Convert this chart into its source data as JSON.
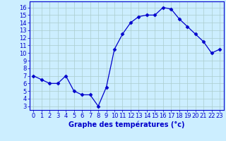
{
  "hours": [
    0,
    1,
    2,
    3,
    4,
    5,
    6,
    7,
    8,
    9,
    10,
    11,
    12,
    13,
    14,
    15,
    16,
    17,
    18,
    19,
    20,
    21,
    22,
    23
  ],
  "temps": [
    7,
    6.5,
    6,
    6,
    7,
    5,
    4.5,
    4.5,
    3,
    5.5,
    10.5,
    12.5,
    14,
    14.8,
    15,
    15,
    16,
    15.8,
    14.5,
    13.5,
    12.5,
    11.5,
    10,
    10.5
  ],
  "line_color": "#0000cc",
  "marker": "D",
  "marker_size": 2.5,
  "bg_color": "#cceeff",
  "grid_color": "#aacccc",
  "xlabel": "Graphe des températures (°c)",
  "xlabel_color": "#0000cc",
  "xlabel_fontsize": 7,
  "ylabel_ticks": [
    3,
    4,
    5,
    6,
    7,
    8,
    9,
    10,
    11,
    12,
    13,
    14,
    15,
    16
  ],
  "xlim": [
    -0.5,
    23.5
  ],
  "ylim": [
    2.5,
    16.8
  ],
  "tick_fontsize": 6,
  "tick_color": "#0000cc",
  "spine_color": "#0000cc"
}
